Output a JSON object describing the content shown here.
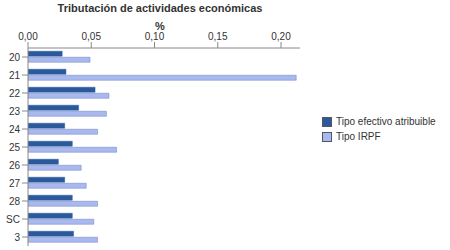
{
  "chart_data": {
    "type": "bar",
    "title": "Tributación de actividades económicas",
    "x_label": "%",
    "orientation": "horizontal",
    "categories": [
      "20",
      "21",
      "22",
      "23",
      "24",
      "25",
      "26",
      "27",
      "28",
      "SC",
      "3"
    ],
    "series": [
      {
        "name": "Tipo efectivo atribuible",
        "color": "#2b5a9c",
        "values": [
          0.027,
          0.03,
          0.053,
          0.04,
          0.029,
          0.035,
          0.024,
          0.029,
          0.035,
          0.035,
          0.036
        ]
      },
      {
        "name": "Tipo IRPF",
        "color": "#a9b9ee",
        "values": [
          0.049,
          0.212,
          0.064,
          0.062,
          0.055,
          0.07,
          0.042,
          0.046,
          0.055,
          0.052,
          0.055
        ]
      }
    ],
    "xlim": [
      0,
      0.215
    ],
    "xticks": [
      {
        "value": 0,
        "label": "0,00"
      },
      {
        "value": 0.05,
        "label": "0,05"
      },
      {
        "value": 0.1,
        "label": "0,10"
      },
      {
        "value": 0.15,
        "label": "0,15"
      },
      {
        "value": 0.2,
        "label": "0,20"
      }
    ],
    "grid": false,
    "legend": "right",
    "data_labels": false
  }
}
